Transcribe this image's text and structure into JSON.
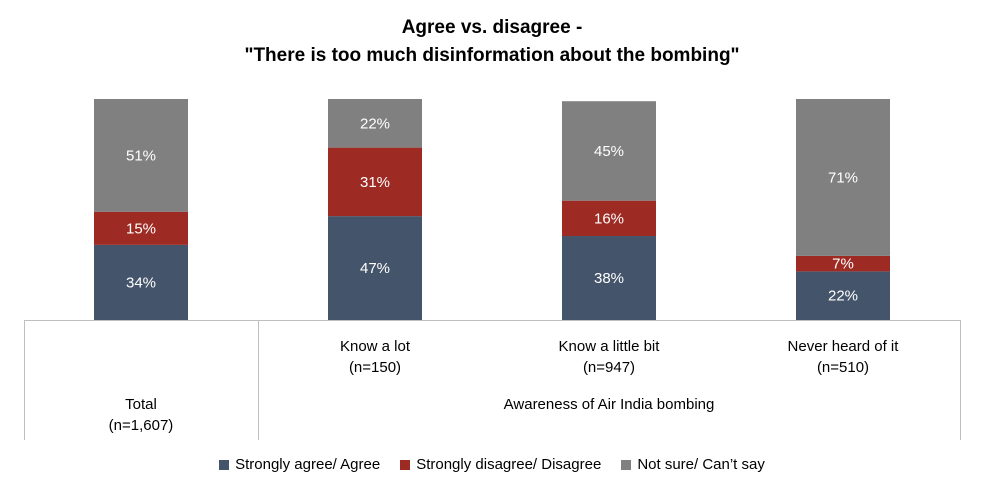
{
  "chart_data": {
    "type": "bar",
    "stacked": true,
    "percent_stacked": true,
    "title_lines": [
      "Agree vs. disagree -",
      "\"There is too much disinformation about the bombing\""
    ],
    "categories": [
      {
        "line1": "Total",
        "line2": "(n=1,607)"
      },
      {
        "line1": "Know a lot",
        "line2": "(n=150)"
      },
      {
        "line1": "Know a little bit",
        "line2": "(n=947)"
      },
      {
        "line1": "Never heard of it",
        "line2": "(n=510)"
      }
    ],
    "group_label": "Awareness of Air India bombing",
    "series": [
      {
        "name": "Strongly agree/ Agree",
        "color": "#44546a",
        "values": [
          34,
          47,
          38,
          22
        ],
        "labels": [
          "34%",
          "47%",
          "38%",
          "22%"
        ]
      },
      {
        "name": "Strongly disagree/ Disagree",
        "color": "#9e2a24",
        "values": [
          15,
          31,
          16,
          7
        ],
        "labels": [
          "15%",
          "31%",
          "16%",
          "7%"
        ]
      },
      {
        "name": "Not sure/ Can’t say",
        "color": "#808080",
        "values": [
          51,
          22,
          45,
          71
        ],
        "labels": [
          "51%",
          "22%",
          "45%",
          "71%"
        ]
      }
    ],
    "ylim": [
      0,
      100
    ],
    "grid": false,
    "legend_position": "bottom"
  }
}
